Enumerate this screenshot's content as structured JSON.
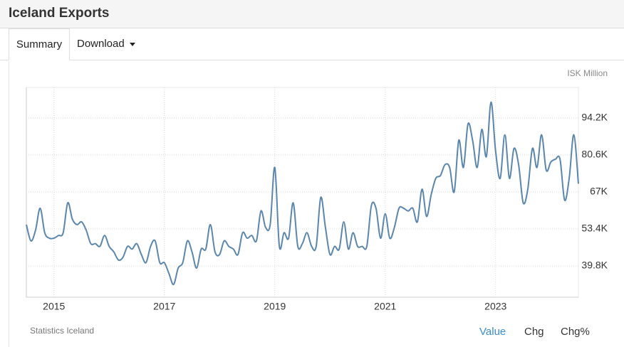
{
  "header": {
    "title": "Iceland Exports"
  },
  "tabs": [
    "Summary",
    "Download"
  ],
  "chart_data": {
    "type": "line",
    "ylabel": "ISK Million",
    "source": "Statistics Iceland",
    "x": [
      2014.5,
      2014.583,
      2014.667,
      2014.75,
      2014.833,
      2014.917,
      2015,
      2015.083,
      2015.167,
      2015.25,
      2015.333,
      2015.417,
      2015.5,
      2015.583,
      2015.667,
      2015.75,
      2015.833,
      2015.917,
      2016,
      2016.083,
      2016.167,
      2016.25,
      2016.333,
      2016.417,
      2016.5,
      2016.583,
      2016.667,
      2016.75,
      2016.833,
      2016.917,
      2017,
      2017.083,
      2017.167,
      2017.25,
      2017.333,
      2017.417,
      2017.5,
      2017.583,
      2017.667,
      2017.75,
      2017.833,
      2017.917,
      2018,
      2018.083,
      2018.167,
      2018.25,
      2018.333,
      2018.417,
      2018.5,
      2018.583,
      2018.667,
      2018.75,
      2018.833,
      2018.917,
      2019,
      2019.083,
      2019.167,
      2019.25,
      2019.333,
      2019.417,
      2019.5,
      2019.583,
      2019.667,
      2019.75,
      2019.833,
      2019.917,
      2020,
      2020.083,
      2020.167,
      2020.25,
      2020.333,
      2020.417,
      2020.5,
      2020.583,
      2020.667,
      2020.75,
      2020.833,
      2020.917,
      2021,
      2021.083,
      2021.167,
      2021.25,
      2021.333,
      2021.417,
      2021.5,
      2021.583,
      2021.667,
      2021.75,
      2021.833,
      2021.917,
      2022,
      2022.083,
      2022.167,
      2022.25,
      2022.333,
      2022.417,
      2022.5,
      2022.583,
      2022.667,
      2022.75,
      2022.833,
      2022.917,
      2023,
      2023.083,
      2023.167,
      2023.25,
      2023.333,
      2023.417,
      2023.5,
      2023.583,
      2023.667,
      2023.75,
      2023.833,
      2023.917,
      2024,
      2024.083,
      2024.167,
      2024.25,
      2024.333,
      2024.417,
      2024.5
    ],
    "series": [
      {
        "name": "Iceland Exports",
        "color": "#5a86ae",
        "values": [
          55000,
          49000,
          53000,
          61000,
          52000,
          50000,
          50000,
          51000,
          52000,
          63000,
          57000,
          55000,
          56000,
          53000,
          48000,
          48000,
          47000,
          51000,
          47000,
          45000,
          42000,
          43000,
          47000,
          46000,
          48000,
          44000,
          41000,
          47000,
          49000,
          41000,
          41000,
          37000,
          33000,
          39000,
          41000,
          49000,
          45000,
          39000,
          46000,
          46000,
          55000,
          45000,
          44000,
          49000,
          47000,
          46000,
          44000,
          52000,
          50000,
          51000,
          49000,
          60000,
          54000,
          55000,
          76000,
          47000,
          52000,
          50000,
          63000,
          47000,
          48000,
          52000,
          47000,
          47000,
          65000,
          54000,
          44000,
          47000,
          46000,
          56000,
          46000,
          52000,
          47000,
          47000,
          47000,
          62000,
          61000,
          50000,
          59000,
          50000,
          54000,
          61000,
          61000,
          60000,
          61000,
          56000,
          68000,
          58000,
          66000,
          72000,
          73000,
          77000,
          76000,
          67000,
          86000,
          76000,
          92000,
          86000,
          76000,
          90000,
          80000,
          100000,
          82000,
          72000,
          88000,
          72000,
          83000,
          77000,
          63000,
          68000,
          83000,
          76000,
          88000,
          75000,
          78000,
          79000,
          79000,
          64000,
          72000,
          88000,
          70000
        ]
      }
    ],
    "xlim": [
      2014.5,
      2024.5
    ],
    "xticks": [
      2015,
      2017,
      2019,
      2021,
      2023
    ],
    "ylim": [
      28300,
      105400
    ],
    "yticks": [
      {
        "value": 39800,
        "label": "39.8K"
      },
      {
        "value": 53400,
        "label": "53.4K"
      },
      {
        "value": 67000,
        "label": "67K"
      },
      {
        "value": 80600,
        "label": "80.6K"
      },
      {
        "value": 94200,
        "label": "94.2K"
      }
    ],
    "grid": true
  },
  "controls": [
    "Value",
    "Chg",
    "Chg%"
  ]
}
